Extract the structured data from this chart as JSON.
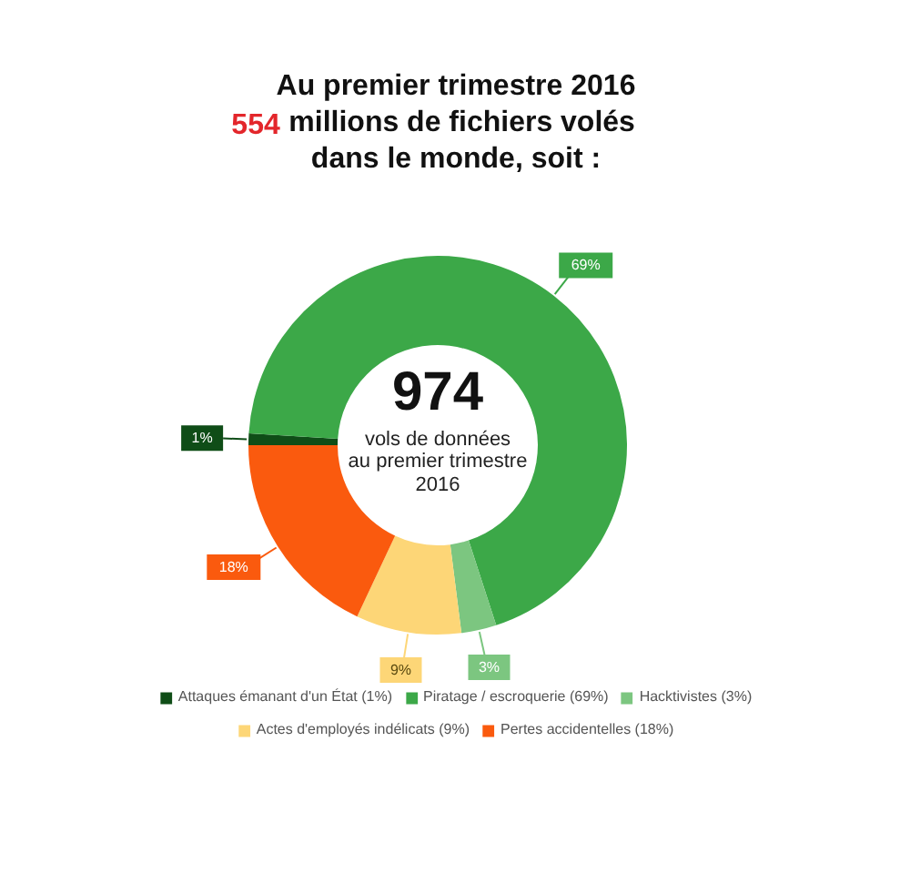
{
  "chart_data": {
    "type": "donut",
    "title": "Au premier trimestre 2016\n554 millions de fichiers volés\ndans le monde, soit :",
    "categories": [
      "Attaques émanant d'un État (1%)",
      "Piratage / escroquerie (69%)",
      "Hacktivistes (3%)",
      "Actes d'employés indélicats (9%)",
      "Pertes accidentelles (18%)"
    ],
    "values": [
      1,
      69,
      3,
      9,
      18
    ],
    "colors": [
      "#0f4d17",
      "#3ca848",
      "#7cc680",
      "#fdd677",
      "#fa5a0e"
    ],
    "value_labels": [
      "1%",
      "69%",
      "3%",
      "9%",
      "18%"
    ],
    "annotations": [
      "974",
      "vols de données\nau premier trimestre\n2016"
    ],
    "legend": "bottom"
  }
}
